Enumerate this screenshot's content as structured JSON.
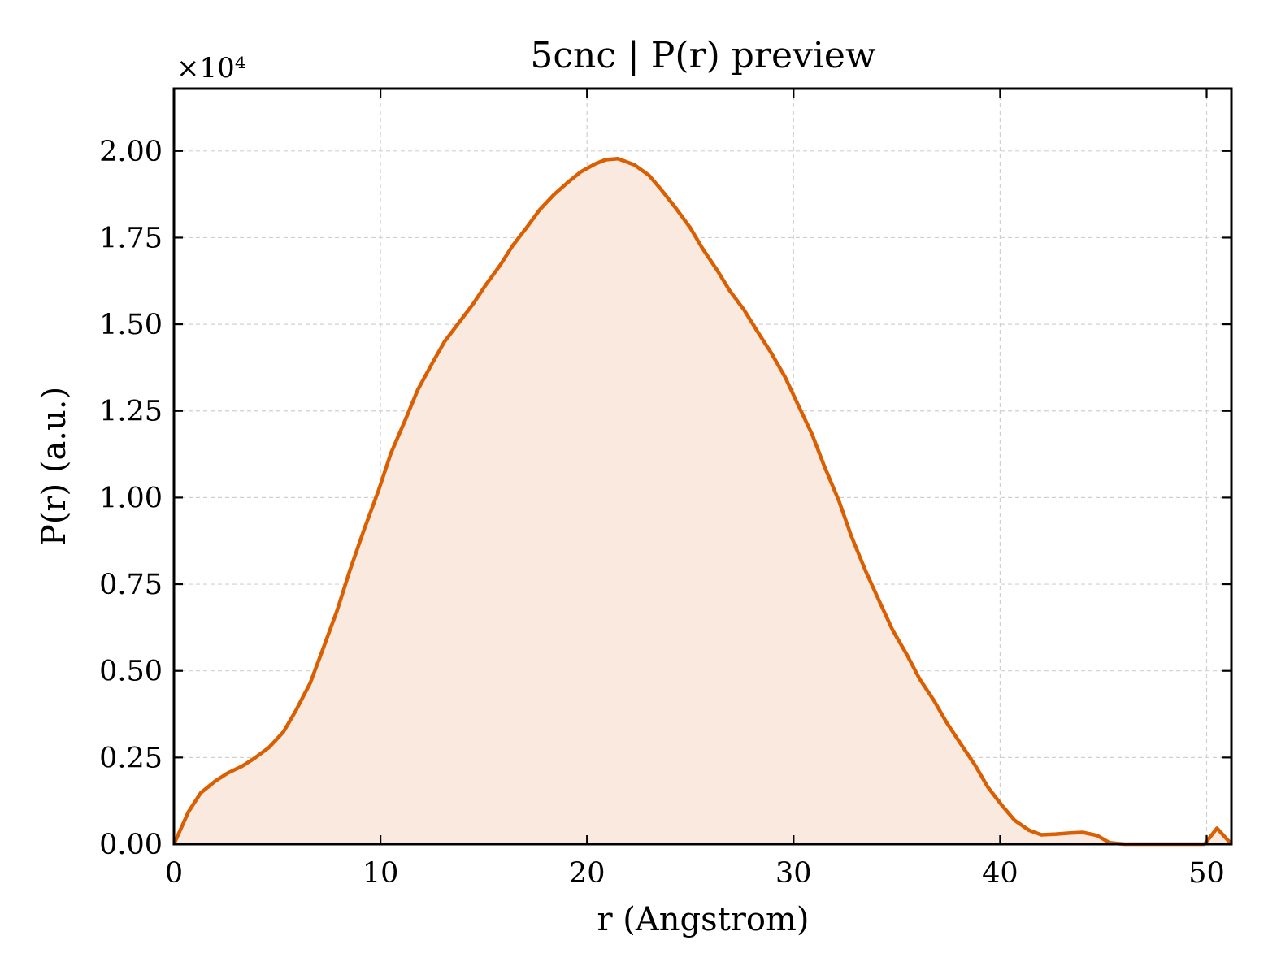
{
  "chart_data": {
    "type": "area",
    "title": "5cnc | P(r) preview",
    "xlabel": "r (Angstrom)",
    "ylabel": "P(r) (a.u.)",
    "y_offset_label": "×10⁴",
    "xlim": [
      0,
      51.2
    ],
    "ylim": [
      0,
      2.18
    ],
    "x_ticks": [
      0,
      10,
      20,
      30,
      40,
      50
    ],
    "x_tick_labels": [
      "0",
      "10",
      "20",
      "30",
      "40",
      "50"
    ],
    "y_ticks": [
      0,
      0.25,
      0.5,
      0.75,
      1.0,
      1.25,
      1.5,
      1.75,
      2.0
    ],
    "y_tick_labels": [
      "0.00",
      "0.25",
      "0.50",
      "0.75",
      "1.00",
      "1.25",
      "1.50",
      "1.75",
      "2.00"
    ],
    "grid": true,
    "colors": {
      "line": "#d95f02",
      "fill": "#f9e9de"
    },
    "series": [
      {
        "x": [
          0,
          0.7,
          1.3,
          2.0,
          2.6,
          3.3,
          3.9,
          4.6,
          5.3,
          5.9,
          6.6,
          7.2,
          7.9,
          8.5,
          9.2,
          9.9,
          10.5,
          11.2,
          11.8,
          12.5,
          13.1,
          13.8,
          14.5,
          15.1,
          15.8,
          16.4,
          17.1,
          17.7,
          18.4,
          19.1,
          19.7,
          20.4,
          20.9,
          21.5,
          22.3,
          23.0,
          23.6,
          24.3,
          25.0,
          25.6,
          26.3,
          26.9,
          27.6,
          28.2,
          28.9,
          29.6,
          30.2,
          30.9,
          31.5,
          32.2,
          32.8,
          33.5,
          34.2,
          34.8,
          35.5,
          36.1,
          36.8,
          37.4,
          38.1,
          38.8,
          39.4,
          40.1,
          40.7,
          41.4,
          42.0,
          42.7,
          43.4,
          44.0,
          44.7,
          45.3,
          46.0,
          46.6,
          47.3,
          47.9,
          48.6,
          49.2,
          49.9,
          50.5,
          51.2
        ],
        "y": [
          0.0,
          0.093,
          0.148,
          0.182,
          0.205,
          0.225,
          0.248,
          0.279,
          0.324,
          0.385,
          0.465,
          0.561,
          0.674,
          0.787,
          0.907,
          1.02,
          1.127,
          1.224,
          1.31,
          1.387,
          1.45,
          1.505,
          1.56,
          1.614,
          1.671,
          1.727,
          1.781,
          1.83,
          1.874,
          1.911,
          1.94,
          1.963,
          1.975,
          1.978,
          1.96,
          1.93,
          1.888,
          1.835,
          1.778,
          1.718,
          1.656,
          1.598,
          1.542,
          1.484,
          1.419,
          1.347,
          1.27,
          1.182,
          1.089,
          0.99,
          0.888,
          0.787,
          0.695,
          0.617,
          0.545,
          0.477,
          0.414,
          0.352,
          0.289,
          0.227,
          0.165,
          0.111,
          0.069,
          0.04,
          0.027,
          0.029,
          0.032,
          0.034,
          0.025,
          0.004,
          0.0,
          0.0,
          0.0,
          0.0,
          0.0,
          0.0,
          0.0,
          0.046,
          0.0
        ]
      }
    ]
  }
}
